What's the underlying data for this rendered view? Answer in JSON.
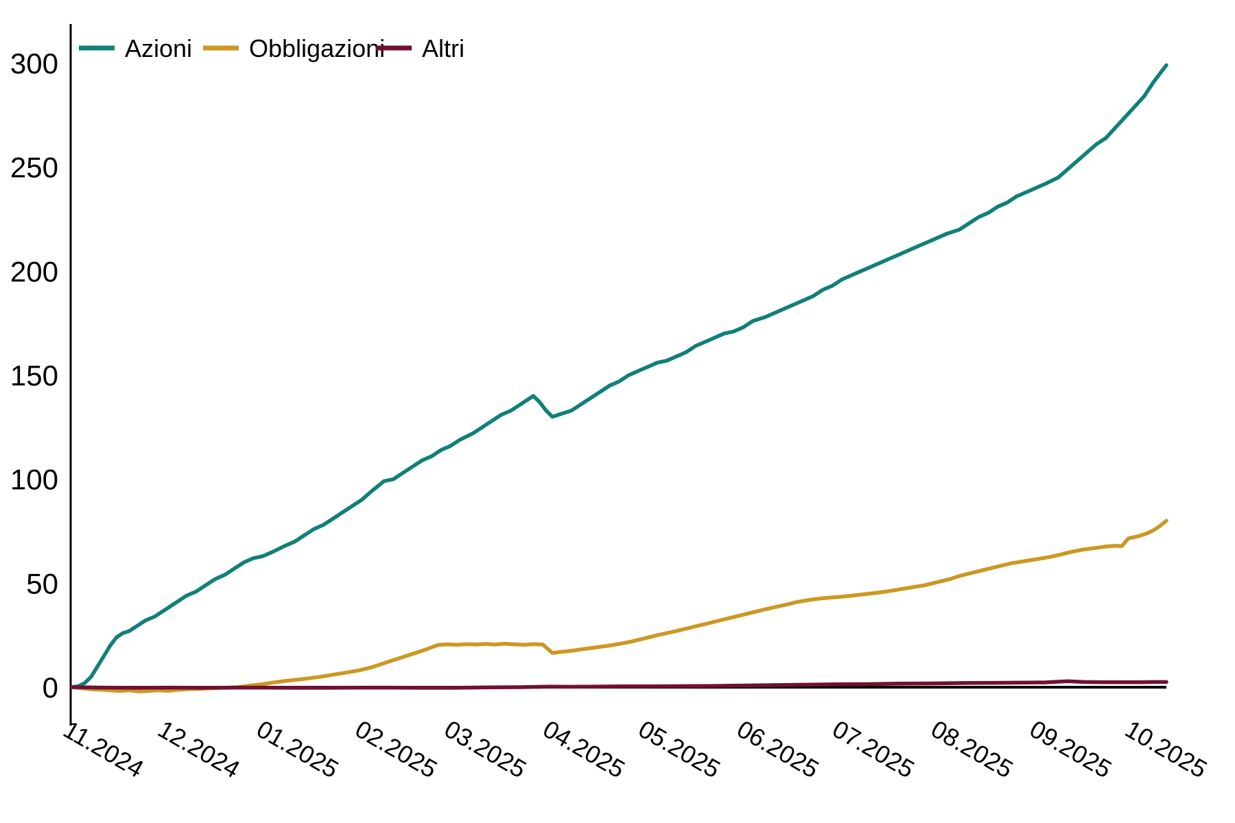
{
  "chart_data": {
    "type": "line",
    "title": "",
    "xlabel": "",
    "ylabel": "",
    "legend_position": "top-left",
    "grid": false,
    "background_color": "#ffffff",
    "axis_color": "#000000",
    "zero_line_color": "#000000",
    "x_unit": "days from 2024-10-26",
    "x_domain": [
      0,
      344
    ],
    "ylim": [
      0,
      300
    ],
    "y_ticks": [
      0,
      50,
      100,
      150,
      200,
      250,
      300
    ],
    "x_ticks": [
      {
        "day": 6,
        "label": "11.2024"
      },
      {
        "day": 36,
        "label": "12.2024"
      },
      {
        "day": 67,
        "label": "01.2025"
      },
      {
        "day": 98,
        "label": "02.2025"
      },
      {
        "day": 126,
        "label": "03.2025"
      },
      {
        "day": 157,
        "label": "04.2025"
      },
      {
        "day": 187,
        "label": "05.2025"
      },
      {
        "day": 218,
        "label": "06.2025"
      },
      {
        "day": 248,
        "label": "07.2025"
      },
      {
        "day": 279,
        "label": "08.2025"
      },
      {
        "day": 310,
        "label": "09.2025"
      },
      {
        "day": 340,
        "label": "10.2025"
      }
    ],
    "series": [
      {
        "name": "Azioni",
        "color": "#108078",
        "points": [
          [
            0,
            0
          ],
          [
            2,
            0.5
          ],
          [
            4,
            2
          ],
          [
            6,
            5
          ],
          [
            8,
            10
          ],
          [
            10,
            15
          ],
          [
            12,
            20
          ],
          [
            14,
            24
          ],
          [
            16,
            26
          ],
          [
            18,
            27
          ],
          [
            20,
            29
          ],
          [
            23,
            32
          ],
          [
            26,
            34
          ],
          [
            29,
            37
          ],
          [
            32,
            40
          ],
          [
            36,
            44
          ],
          [
            39,
            46
          ],
          [
            42,
            49
          ],
          [
            45,
            52
          ],
          [
            48,
            54
          ],
          [
            51,
            57
          ],
          [
            54,
            60
          ],
          [
            57,
            62
          ],
          [
            60,
            63
          ],
          [
            63,
            65
          ],
          [
            67,
            68
          ],
          [
            70,
            70
          ],
          [
            73,
            73
          ],
          [
            76,
            76
          ],
          [
            79,
            78
          ],
          [
            82,
            81
          ],
          [
            85,
            84
          ],
          [
            88,
            87
          ],
          [
            91,
            90
          ],
          [
            94,
            94
          ],
          [
            98,
            99
          ],
          [
            101,
            100
          ],
          [
            104,
            103
          ],
          [
            107,
            106
          ],
          [
            110,
            109
          ],
          [
            113,
            111
          ],
          [
            116,
            114
          ],
          [
            119,
            116
          ],
          [
            122,
            119
          ],
          [
            126,
            122
          ],
          [
            129,
            125
          ],
          [
            132,
            128
          ],
          [
            135,
            131
          ],
          [
            138,
            133
          ],
          [
            141,
            136
          ],
          [
            143,
            138
          ],
          [
            145,
            140
          ],
          [
            147,
            137
          ],
          [
            149,
            133
          ],
          [
            151,
            130
          ],
          [
            153,
            131
          ],
          [
            155,
            132
          ],
          [
            157,
            133
          ],
          [
            160,
            136
          ],
          [
            163,
            139
          ],
          [
            166,
            142
          ],
          [
            169,
            145
          ],
          [
            172,
            147
          ],
          [
            175,
            150
          ],
          [
            178,
            152
          ],
          [
            181,
            154
          ],
          [
            184,
            156
          ],
          [
            187,
            157
          ],
          [
            190,
            159
          ],
          [
            193,
            161
          ],
          [
            196,
            164
          ],
          [
            199,
            166
          ],
          [
            202,
            168
          ],
          [
            205,
            170
          ],
          [
            208,
            171
          ],
          [
            211,
            173
          ],
          [
            214,
            176
          ],
          [
            218,
            178
          ],
          [
            221,
            180
          ],
          [
            224,
            182
          ],
          [
            227,
            184
          ],
          [
            230,
            186
          ],
          [
            233,
            188
          ],
          [
            236,
            191
          ],
          [
            239,
            193
          ],
          [
            242,
            196
          ],
          [
            245,
            198
          ],
          [
            248,
            200
          ],
          [
            251,
            202
          ],
          [
            254,
            204
          ],
          [
            257,
            206
          ],
          [
            260,
            208
          ],
          [
            263,
            210
          ],
          [
            266,
            212
          ],
          [
            269,
            214
          ],
          [
            272,
            216
          ],
          [
            275,
            218
          ],
          [
            279,
            220
          ],
          [
            282,
            223
          ],
          [
            285,
            226
          ],
          [
            288,
            228
          ],
          [
            291,
            231
          ],
          [
            294,
            233
          ],
          [
            297,
            236
          ],
          [
            300,
            238
          ],
          [
            303,
            240
          ],
          [
            306,
            242
          ],
          [
            310,
            245
          ],
          [
            313,
            249
          ],
          [
            316,
            253
          ],
          [
            319,
            257
          ],
          [
            322,
            261
          ],
          [
            325,
            264
          ],
          [
            328,
            269
          ],
          [
            331,
            274
          ],
          [
            334,
            279
          ],
          [
            337,
            284
          ],
          [
            340,
            291
          ],
          [
            342,
            295
          ],
          [
            344,
            299
          ]
        ]
      },
      {
        "name": "Obbligazioni",
        "color": "#cd9722",
        "points": [
          [
            0,
            0
          ],
          [
            3,
            -0.5
          ],
          [
            6,
            -1
          ],
          [
            9,
            -1.2
          ],
          [
            12,
            -1.5
          ],
          [
            15,
            -1.8
          ],
          [
            18,
            -1.5
          ],
          [
            21,
            -2
          ],
          [
            24,
            -1.8
          ],
          [
            27,
            -1.5
          ],
          [
            30,
            -1.7
          ],
          [
            33,
            -1.3
          ],
          [
            36,
            -1
          ],
          [
            40,
            -0.8
          ],
          [
            44,
            -0.5
          ],
          [
            48,
            -0.3
          ],
          [
            52,
            0
          ],
          [
            56,
            0.8
          ],
          [
            60,
            1.5
          ],
          [
            63,
            2.2
          ],
          [
            67,
            3
          ],
          [
            70,
            3.5
          ],
          [
            74,
            4.2
          ],
          [
            78,
            5
          ],
          [
            82,
            6
          ],
          [
            86,
            7
          ],
          [
            90,
            8
          ],
          [
            94,
            9.5
          ],
          [
            98,
            11.5
          ],
          [
            102,
            13.5
          ],
          [
            105,
            15
          ],
          [
            108,
            16.5
          ],
          [
            111,
            18
          ],
          [
            115,
            20.3
          ],
          [
            118,
            20.6
          ],
          [
            121,
            20.4
          ],
          [
            124,
            20.7
          ],
          [
            127,
            20.5
          ],
          [
            130,
            20.8
          ],
          [
            133,
            20.5
          ],
          [
            136,
            20.9
          ],
          [
            139,
            20.6
          ],
          [
            142,
            20.4
          ],
          [
            145,
            20.7
          ],
          [
            148,
            20.5
          ],
          [
            151,
            16.5
          ],
          [
            154,
            17
          ],
          [
            157,
            17.5
          ],
          [
            160,
            18.2
          ],
          [
            164,
            19
          ],
          [
            168,
            19.8
          ],
          [
            172,
            20.8
          ],
          [
            176,
            22
          ],
          [
            180,
            23.5
          ],
          [
            184,
            25
          ],
          [
            187,
            26
          ],
          [
            190,
            27
          ],
          [
            194,
            28.5
          ],
          [
            198,
            30
          ],
          [
            202,
            31.5
          ],
          [
            206,
            33
          ],
          [
            210,
            34.5
          ],
          [
            214,
            36
          ],
          [
            218,
            37.5
          ],
          [
            221,
            38.5
          ],
          [
            224,
            39.5
          ],
          [
            228,
            41
          ],
          [
            232,
            42
          ],
          [
            236,
            42.8
          ],
          [
            240,
            43.3
          ],
          [
            244,
            43.8
          ],
          [
            248,
            44.5
          ],
          [
            252,
            45.2
          ],
          [
            256,
            46
          ],
          [
            260,
            47
          ],
          [
            264,
            48
          ],
          [
            268,
            49
          ],
          [
            272,
            50.5
          ],
          [
            276,
            52
          ],
          [
            279,
            53.5
          ],
          [
            283,
            55
          ],
          [
            287,
            56.5
          ],
          [
            291,
            58
          ],
          [
            295,
            59.5
          ],
          [
            299,
            60.5
          ],
          [
            303,
            61.5
          ],
          [
            307,
            62.5
          ],
          [
            310,
            63.5
          ],
          [
            314,
            65
          ],
          [
            318,
            66.2
          ],
          [
            322,
            67
          ],
          [
            325,
            67.6
          ],
          [
            328,
            68
          ],
          [
            330,
            67.8
          ],
          [
            332,
            71.5
          ],
          [
            335,
            72.5
          ],
          [
            338,
            74
          ],
          [
            340,
            75.5
          ],
          [
            342,
            77.5
          ],
          [
            344,
            80
          ]
        ]
      },
      {
        "name": "Altri",
        "color": "#721034",
        "points": [
          [
            0,
            0
          ],
          [
            10,
            -0.2
          ],
          [
            20,
            -0.3
          ],
          [
            30,
            -0.2
          ],
          [
            40,
            -0.3
          ],
          [
            50,
            -0.2
          ],
          [
            60,
            -0.2
          ],
          [
            70,
            -0.3
          ],
          [
            80,
            -0.3
          ],
          [
            90,
            -0.2
          ],
          [
            100,
            -0.2
          ],
          [
            110,
            -0.3
          ],
          [
            120,
            -0.3
          ],
          [
            130,
            -0.1
          ],
          [
            140,
            0
          ],
          [
            151,
            0.3
          ],
          [
            156,
            0.2
          ],
          [
            164,
            0.3
          ],
          [
            172,
            0.4
          ],
          [
            180,
            0.4
          ],
          [
            190,
            0.5
          ],
          [
            200,
            0.6
          ],
          [
            210,
            0.8
          ],
          [
            220,
            1
          ],
          [
            230,
            1.2
          ],
          [
            240,
            1.4
          ],
          [
            250,
            1.5
          ],
          [
            260,
            1.7
          ],
          [
            270,
            1.8
          ],
          [
            280,
            2
          ],
          [
            290,
            2.1
          ],
          [
            300,
            2.2
          ],
          [
            306,
            2.3
          ],
          [
            313,
            2.9
          ],
          [
            318,
            2.5
          ],
          [
            324,
            2.4
          ],
          [
            330,
            2.4
          ],
          [
            336,
            2.4
          ],
          [
            340,
            2.5
          ],
          [
            344,
            2.5
          ]
        ]
      }
    ]
  }
}
